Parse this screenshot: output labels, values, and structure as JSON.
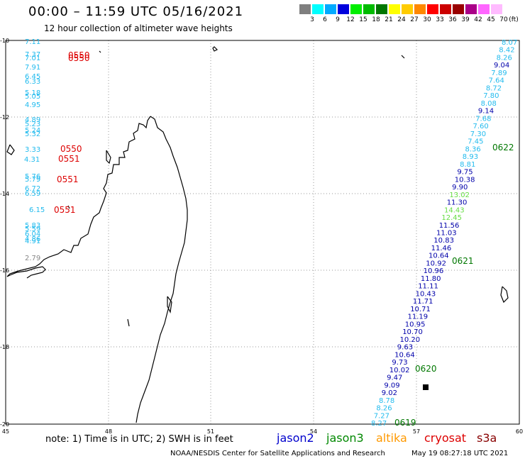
{
  "header": {
    "title": "00:00 – 11:59 UTC 05/16/2021",
    "subtitle": "12 hour collection of altimeter wave heights"
  },
  "legend": {
    "unit": "(ft)",
    "items": [
      {
        "label": "3",
        "color": "#7f7f7f"
      },
      {
        "label": "6",
        "color": "#00ffff"
      },
      {
        "label": "9",
        "color": "#00aaff"
      },
      {
        "label": "12",
        "color": "#0000dd"
      },
      {
        "label": "15",
        "color": "#00ee00"
      },
      {
        "label": "18",
        "color": "#00bb00"
      },
      {
        "label": "21",
        "color": "#007700"
      },
      {
        "label": "24",
        "color": "#ffff00"
      },
      {
        "label": "27",
        "color": "#ffcc00"
      },
      {
        "label": "30",
        "color": "#ff8800"
      },
      {
        "label": "33",
        "color": "#ff0000"
      },
      {
        "label": "36",
        "color": "#cc0000"
      },
      {
        "label": "39",
        "color": "#990000"
      },
      {
        "label": "42",
        "color": "#aa0088"
      },
      {
        "label": "45",
        "color": "#ff66ff"
      },
      {
        "label": "70",
        "color": "#ffbbff"
      }
    ]
  },
  "axes": {
    "lat_labels": [
      "-10",
      "-12",
      "-14",
      "-16",
      "-18",
      "-20"
    ],
    "lon_labels": [
      "45",
      "48",
      "51",
      "54",
      "57",
      "60"
    ]
  },
  "colors": {
    "cyan": "#22bbee",
    "darkblue": "#0000aa",
    "lightgreen": "#66dd44",
    "red": "#dd0000",
    "darkgreen": "#007700",
    "gray": "#888888",
    "grid": "#999999"
  },
  "west_track": {
    "values": [
      {
        "v": "7.11",
        "c": "cyan"
      },
      {
        "v": "7.37",
        "c": "cyan"
      },
      {
        "v": "7.01",
        "c": "cyan"
      },
      {
        "v": "7.91",
        "c": "cyan"
      },
      {
        "v": "6.45",
        "c": "cyan"
      },
      {
        "v": "6.33",
        "c": "cyan"
      },
      {
        "v": "5.18",
        "c": "cyan"
      },
      {
        "v": "5.05",
        "c": "cyan"
      },
      {
        "v": "4.95",
        "c": "cyan"
      },
      {
        "v": "4.89",
        "c": "cyan"
      },
      {
        "v": "5.23",
        "c": "cyan"
      },
      {
        "v": "5.24",
        "c": "cyan"
      },
      {
        "v": "5.32",
        "c": "cyan"
      },
      {
        "v": "3.33",
        "c": "cyan"
      },
      {
        "v": "4.31",
        "c": "cyan"
      },
      {
        "v": "5.76",
        "c": "cyan"
      },
      {
        "v": "5.79",
        "c": "cyan"
      },
      {
        "v": "6.72",
        "c": "cyan"
      },
      {
        "v": "6.59",
        "c": "cyan"
      },
      {
        "v": "6.15",
        "c": "cyan"
      },
      {
        "v": "5.83",
        "c": "cyan"
      },
      {
        "v": "5.59",
        "c": "cyan"
      },
      {
        "v": "6.04",
        "c": "cyan"
      },
      {
        "v": "4.86",
        "c": "cyan"
      },
      {
        "v": "4.91",
        "c": "cyan"
      },
      {
        "v": "2.79",
        "c": "gray"
      }
    ],
    "times": [
      "0550",
      "0550",
      "0550",
      "0551",
      "0551",
      "0551"
    ]
  },
  "east_track": {
    "values": [
      {
        "v": "8.07",
        "c": "cyan"
      },
      {
        "v": "8.42",
        "c": "cyan"
      },
      {
        "v": "8.26",
        "c": "cyan"
      },
      {
        "v": "9.04",
        "c": "darkblue"
      },
      {
        "v": "7.89",
        "c": "cyan"
      },
      {
        "v": "7.64",
        "c": "cyan"
      },
      {
        "v": "8.72",
        "c": "cyan"
      },
      {
        "v": "7.80",
        "c": "cyan"
      },
      {
        "v": "8.08",
        "c": "cyan"
      },
      {
        "v": "9.14",
        "c": "darkblue"
      },
      {
        "v": "7.68",
        "c": "cyan"
      },
      {
        "v": "7.60",
        "c": "cyan"
      },
      {
        "v": "7.30",
        "c": "cyan"
      },
      {
        "v": "7.45",
        "c": "cyan"
      },
      {
        "v": "8.36",
        "c": "cyan"
      },
      {
        "v": "8.93",
        "c": "cyan"
      },
      {
        "v": "8.81",
        "c": "cyan"
      },
      {
        "v": "9.75",
        "c": "darkblue"
      },
      {
        "v": "10.38",
        "c": "darkblue"
      },
      {
        "v": "9.90",
        "c": "darkblue"
      },
      {
        "v": "13.02",
        "c": "lightgreen"
      },
      {
        "v": "11.30",
        "c": "darkblue"
      },
      {
        "v": "14.43",
        "c": "lightgreen"
      },
      {
        "v": "12.45",
        "c": "lightgreen"
      },
      {
        "v": "11.56",
        "c": "darkblue"
      },
      {
        "v": "11.03",
        "c": "darkblue"
      },
      {
        "v": "10.83",
        "c": "darkblue"
      },
      {
        "v": "11.46",
        "c": "darkblue"
      },
      {
        "v": "10.64",
        "c": "darkblue"
      },
      {
        "v": "10.92",
        "c": "darkblue"
      },
      {
        "v": "10.96",
        "c": "darkblue"
      },
      {
        "v": "11.80",
        "c": "darkblue"
      },
      {
        "v": "11.11",
        "c": "darkblue"
      },
      {
        "v": "10.43",
        "c": "darkblue"
      },
      {
        "v": "11.71",
        "c": "darkblue"
      },
      {
        "v": "10.71",
        "c": "darkblue"
      },
      {
        "v": "11.19",
        "c": "darkblue"
      },
      {
        "v": "10.95",
        "c": "darkblue"
      },
      {
        "v": "10.70",
        "c": "darkblue"
      },
      {
        "v": "10.20",
        "c": "darkblue"
      },
      {
        "v": "9.63",
        "c": "darkblue"
      },
      {
        "v": "10.64",
        "c": "darkblue"
      },
      {
        "v": "9.73",
        "c": "darkblue"
      },
      {
        "v": "10.02",
        "c": "darkblue"
      },
      {
        "v": "9.47",
        "c": "darkblue"
      },
      {
        "v": "9.09",
        "c": "darkblue"
      },
      {
        "v": "9.02",
        "c": "darkblue"
      },
      {
        "v": "8.78",
        "c": "cyan"
      },
      {
        "v": "8.26",
        "c": "cyan"
      },
      {
        "v": "7.27",
        "c": "cyan"
      },
      {
        "v": "8.27",
        "c": "cyan"
      }
    ],
    "times": [
      "0622",
      "0621",
      "0620",
      "0619"
    ]
  },
  "footer": {
    "note": "note:  1) Time is in UTC;  2) SWH is in feet",
    "satellites": [
      {
        "label": "jason2",
        "color": "#0000cc"
      },
      {
        "label": "jason3",
        "color": "#008800"
      },
      {
        "label": "altika",
        "color": "#ff9900"
      },
      {
        "label": "cryosat",
        "color": "#dd0000"
      },
      {
        "label": "s3a",
        "color": "#880000"
      }
    ],
    "credit": "NOAA/NESDIS Center for Satellite Applications and Research",
    "timestamp": "May 19 08:27:18 UTC 2021"
  }
}
